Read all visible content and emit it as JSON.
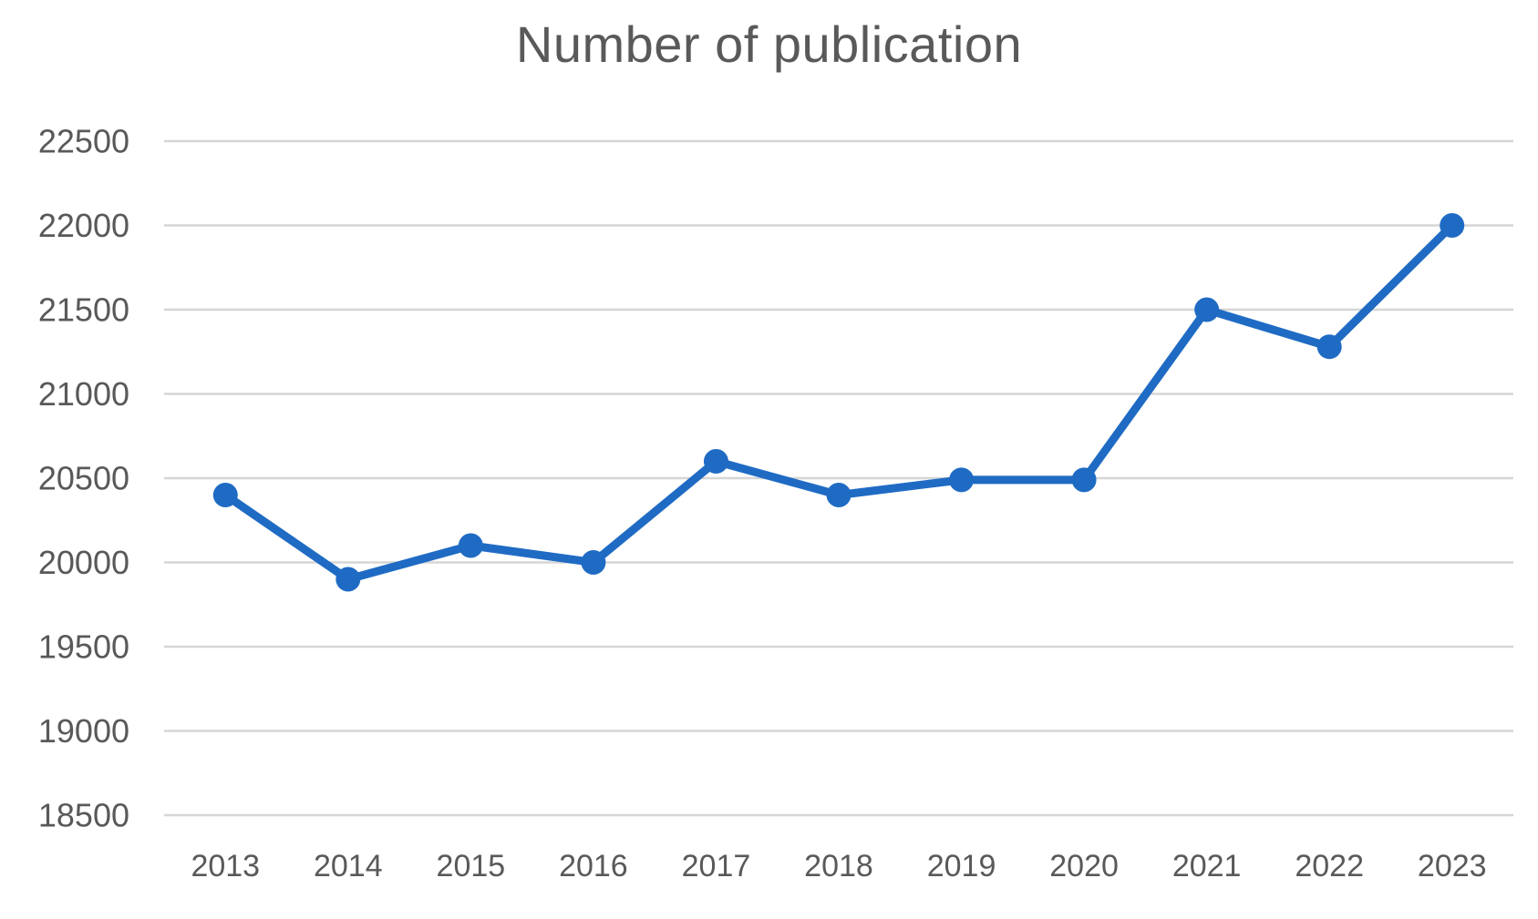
{
  "chart_data": {
    "type": "line",
    "title": "Number of publication",
    "categories": [
      "2013",
      "2014",
      "2015",
      "2016",
      "2017",
      "2018",
      "2019",
      "2020",
      "2021",
      "2022",
      "2023"
    ],
    "values": [
      20400,
      19900,
      20100,
      20000,
      20600,
      20400,
      20490,
      20490,
      21500,
      21280,
      22000
    ],
    "xlabel": "",
    "ylabel": "",
    "ylim": [
      18500,
      22500
    ],
    "ytick_step": 500,
    "ytick_labels": [
      "22500",
      "22000",
      "21500",
      "21000",
      "20500",
      "20000",
      "19500",
      "19000",
      "18500"
    ],
    "grid": true,
    "legend": "none",
    "colors": {
      "line": "#1F6BC4",
      "marker": "#1F6BC4",
      "gridline": "#D6D6D6",
      "tick_label": "#595959",
      "title": "#595959"
    }
  }
}
